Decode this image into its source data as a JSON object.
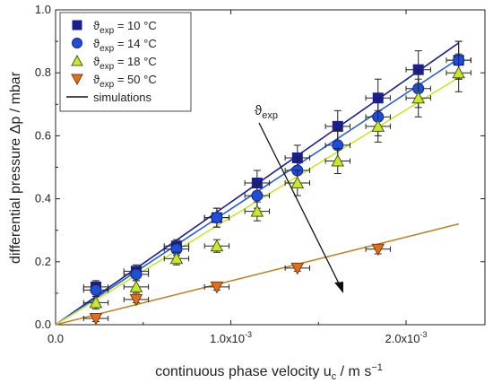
{
  "chart_data": {
    "type": "scatter",
    "xlabel_main": "continuous phase velocity u",
    "xlabel_sub": "c",
    "xlabel_unit": "  /  m s",
    "xlabel_sup": "−1",
    "ylabel": "differential pressure Δp  /  mbar",
    "xlim": [
      0,
      0.00245
    ],
    "ylim": [
      0,
      1.0
    ],
    "x_ticks": [
      {
        "value": 0,
        "label": "0.0"
      },
      {
        "value": 0.001,
        "label": "1.0x10",
        "exp": "-3"
      },
      {
        "value": 0.002,
        "label": "2.0x10",
        "exp": "-3"
      }
    ],
    "y_ticks": [
      {
        "value": 0,
        "label": "0.0"
      },
      {
        "value": 0.2,
        "label": "0.2"
      },
      {
        "value": 0.4,
        "label": "0.4"
      },
      {
        "value": 0.6,
        "label": "0.6"
      },
      {
        "value": 0.8,
        "label": "0.8"
      },
      {
        "value": 1.0,
        "label": "1.0"
      }
    ],
    "legend_position": "top-left",
    "annotation": {
      "main": "ϑ",
      "sub": "exp"
    },
    "series": [
      {
        "name": "ϑ",
        "sub": "exp",
        "suffix": " = 10 °C",
        "marker": "square",
        "color": "#1a1f8f",
        "fill": "#1a1f8f",
        "x": [
          0.00023,
          0.00046,
          0.00069,
          0.00092,
          0.00115,
          0.00138,
          0.00161,
          0.00184,
          0.00207,
          0.0023
        ],
        "y": [
          0.12,
          0.17,
          0.25,
          0.34,
          0.45,
          0.53,
          0.63,
          0.72,
          0.81,
          0.84
        ],
        "yerr": [
          0.02,
          0.02,
          0.02,
          0.03,
          0.04,
          0.04,
          0.05,
          0.06,
          0.06,
          0.06
        ],
        "xerr": 7e-05,
        "fit": [
          [
            0,
            0
          ],
          [
            0.0023,
            0.895
          ]
        ],
        "fit_color": "#1a1f8f"
      },
      {
        "name": "ϑ",
        "sub": "exp",
        "suffix": " = 14 °C",
        "marker": "circle",
        "color": "#1a1f8f",
        "fill": "#1f4fd1",
        "x": [
          0.00023,
          0.00046,
          0.00069,
          0.00092,
          0.00115,
          0.00138,
          0.00161,
          0.00184,
          0.00207,
          0.0023
        ],
        "y": [
          0.11,
          0.16,
          0.24,
          0.34,
          0.41,
          0.49,
          0.57,
          0.66,
          0.75,
          0.84
        ],
        "yerr": [
          0.02,
          0.02,
          0.02,
          0.03,
          0.04,
          0.04,
          0.05,
          0.06,
          0.06,
          0.06
        ],
        "xerr": 7e-05,
        "fit": [
          [
            0,
            0
          ],
          [
            0.0023,
            0.845
          ]
        ],
        "fit_color": "#2a5fd0"
      },
      {
        "name": "ϑ",
        "sub": "exp",
        "suffix": " = 18 °C",
        "marker": "triangle-up",
        "color": "#4a5a10",
        "fill": "#c8e830",
        "x": [
          0.00023,
          0.00046,
          0.00069,
          0.00092,
          0.00115,
          0.00138,
          0.00161,
          0.00184,
          0.00207,
          0.0023
        ],
        "y": [
          0.07,
          0.12,
          0.21,
          0.25,
          0.36,
          0.45,
          0.52,
          0.63,
          0.72,
          0.8
        ],
        "yerr": [
          0.02,
          0.02,
          0.02,
          0.02,
          0.03,
          0.04,
          0.04,
          0.05,
          0.06,
          0.06
        ],
        "xerr": 7e-05,
        "fit": [
          [
            0,
            0
          ],
          [
            0.0023,
            0.785
          ]
        ],
        "fit_color": "#c8e830"
      },
      {
        "name": "ϑ",
        "sub": "exp",
        "suffix": " = 50 °C",
        "marker": "triangle-down",
        "color": "#7a3a10",
        "fill": "#e07020",
        "x": [
          0.00023,
          0.00046,
          0.00092,
          0.00138,
          0.00184
        ],
        "y": [
          0.02,
          0.08,
          0.12,
          0.18,
          0.24
        ],
        "yerr": [
          0.01,
          0.01,
          0.01,
          0.01,
          0.015
        ],
        "xerr": 7e-05,
        "fit": [
          [
            0,
            0
          ],
          [
            0.0023,
            0.32
          ]
        ],
        "fit_color": "#b8862b"
      }
    ],
    "simulation_label": "simulations"
  },
  "colors": {
    "axis": "#222222",
    "arrow": "#111111"
  }
}
